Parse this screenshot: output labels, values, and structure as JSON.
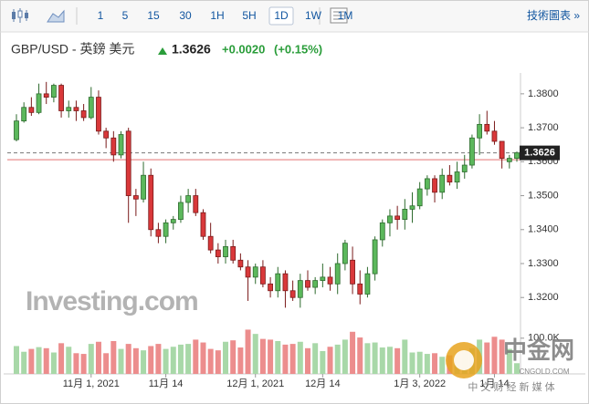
{
  "toolbar": {
    "intervals": [
      "1",
      "5",
      "15",
      "30",
      "1H",
      "5H",
      "1D",
      "1W",
      "1M"
    ],
    "active": "1D",
    "link": "技術圖表 »"
  },
  "chart_data": {
    "type": "candlestick",
    "title": "GBP/USD - 英鎊 美元",
    "last_price": 1.3626,
    "change": "+0.0020",
    "change_percent": "(+0.15%)",
    "prev_close": 1.3606,
    "watermark": "Investing.com",
    "categories": [
      null,
      null,
      null,
      null,
      null,
      null,
      null,
      null,
      null,
      null,
      "11月 1, 2021",
      null,
      null,
      null,
      null,
      null,
      null,
      null,
      null,
      null,
      "11月 14",
      null,
      null,
      null,
      null,
      null,
      null,
      null,
      null,
      null,
      null,
      null,
      "12月 1, 2021",
      null,
      null,
      null,
      null,
      null,
      null,
      null,
      null,
      "12月 14",
      null,
      null,
      null,
      null,
      null,
      null,
      null,
      null,
      null,
      null,
      null,
      null,
      "1月 3, 2022",
      null,
      null,
      null,
      null,
      null,
      null,
      null,
      null,
      null,
      "1月 14",
      null,
      null,
      null
    ],
    "open": [
      1.3665,
      1.372,
      1.376,
      1.3745,
      1.38,
      1.379,
      1.3825,
      1.375,
      1.376,
      1.375,
      1.373,
      1.379,
      1.369,
      1.367,
      1.362,
      1.369,
      1.35,
      1.349,
      1.356,
      1.34,
      1.338,
      1.342,
      1.343,
      1.348,
      1.35,
      1.345,
      1.338,
      1.334,
      1.332,
      1.335,
      1.331,
      1.329,
      1.326,
      1.329,
      1.324,
      1.322,
      1.327,
      1.322,
      1.32,
      1.325,
      1.323,
      1.325,
      1.326,
      1.324,
      1.33,
      1.331,
      1.324,
      1.321,
      1.327,
      1.337,
      1.342,
      1.344,
      1.343,
      1.346,
      1.347,
      1.352,
      1.355,
      1.351,
      1.356,
      1.354,
      1.357,
      1.359,
      1.367,
      1.371,
      1.369,
      1.366,
      1.36,
      1.361
    ],
    "high": [
      1.374,
      1.3775,
      1.379,
      1.383,
      1.3835,
      1.383,
      1.383,
      1.378,
      1.378,
      1.377,
      1.382,
      1.381,
      1.37,
      1.369,
      1.369,
      1.37,
      1.352,
      1.36,
      1.358,
      1.342,
      1.343,
      1.344,
      1.35,
      1.352,
      1.352,
      1.346,
      1.342,
      1.336,
      1.337,
      1.337,
      1.333,
      1.331,
      1.33,
      1.331,
      1.326,
      1.329,
      1.328,
      1.325,
      1.327,
      1.328,
      1.326,
      1.33,
      1.329,
      1.333,
      1.337,
      1.335,
      1.328,
      1.329,
      1.338,
      1.343,
      1.346,
      1.347,
      1.349,
      1.351,
      1.354,
      1.356,
      1.356,
      1.358,
      1.359,
      1.36,
      1.362,
      1.368,
      1.374,
      1.375,
      1.372,
      1.366,
      1.362,
      1.363
    ],
    "low": [
      1.366,
      1.3715,
      1.3735,
      1.374,
      1.377,
      1.3775,
      1.373,
      1.373,
      1.372,
      1.372,
      1.3725,
      1.368,
      1.364,
      1.36,
      1.361,
      1.342,
      1.344,
      1.348,
      1.338,
      1.336,
      1.336,
      1.34,
      1.342,
      1.345,
      1.344,
      1.337,
      1.333,
      1.33,
      1.33,
      1.33,
      1.328,
      1.319,
      1.324,
      1.323,
      1.32,
      1.32,
      1.317,
      1.319,
      1.317,
      1.322,
      1.321,
      1.323,
      1.322,
      1.321,
      1.328,
      1.321,
      1.318,
      1.32,
      1.325,
      1.335,
      1.338,
      1.34,
      1.34,
      1.342,
      1.346,
      1.35,
      1.348,
      1.349,
      1.353,
      1.352,
      1.355,
      1.358,
      1.362,
      1.368,
      1.365,
      1.358,
      1.358,
      1.36
    ],
    "close": [
      1.372,
      1.376,
      1.3745,
      1.38,
      1.379,
      1.3825,
      1.375,
      1.376,
      1.375,
      1.373,
      1.379,
      1.369,
      1.367,
      1.362,
      1.368,
      1.35,
      1.349,
      1.356,
      1.34,
      1.338,
      1.342,
      1.343,
      1.348,
      1.35,
      1.345,
      1.338,
      1.334,
      1.332,
      1.335,
      1.331,
      1.329,
      1.326,
      1.329,
      1.324,
      1.322,
      1.327,
      1.322,
      1.32,
      1.325,
      1.323,
      1.325,
      1.326,
      1.324,
      1.33,
      1.336,
      1.324,
      1.321,
      1.327,
      1.337,
      1.342,
      1.344,
      1.343,
      1.346,
      1.347,
      1.352,
      1.355,
      1.351,
      1.356,
      1.354,
      1.357,
      1.359,
      1.367,
      1.371,
      1.369,
      1.366,
      1.361,
      1.361,
      1.3626
    ],
    "volume": [
      78000,
      62000,
      70000,
      75000,
      72000,
      60000,
      86000,
      76000,
      58000,
      56000,
      84000,
      90000,
      58000,
      92000,
      70000,
      84000,
      72000,
      66000,
      78000,
      84000,
      70000,
      76000,
      82000,
      84000,
      96000,
      88000,
      70000,
      66000,
      90000,
      94000,
      74000,
      124000,
      112000,
      98000,
      96000,
      92000,
      82000,
      84000,
      90000,
      72000,
      86000,
      64000,
      76000,
      82000,
      96000,
      118000,
      102000,
      86000,
      88000,
      74000,
      76000,
      72000,
      96000,
      60000,
      62000,
      56000,
      58000,
      48000,
      52000,
      44000,
      66000,
      72000,
      96000,
      88000,
      104000,
      96000,
      70000,
      30000
    ],
    "ylim": [
      1.3163,
      1.3848
    ],
    "yticks": [
      {
        "value": 1.32,
        "label": "1.3200"
      },
      {
        "value": 1.33,
        "label": "1.3300"
      },
      {
        "value": 1.34,
        "label": "1.3400"
      },
      {
        "value": 1.35,
        "label": "1.3500"
      },
      {
        "value": 1.36,
        "label": "1.3600"
      },
      {
        "value": 1.37,
        "label": "1.3700"
      },
      {
        "value": 1.38,
        "label": "1.3800"
      }
    ],
    "volume_lim": [
      0,
      166000
    ],
    "volume_ticks": [
      {
        "value": 100000,
        "label": "100.0K"
      }
    ],
    "up_color": "#5cb85c",
    "down_color": "#d9383a",
    "volume_up_color": "#a8d8a8",
    "volume_down_color": "#ec8d8d"
  },
  "footer_logo": {
    "name": "中金网",
    "site": "CNGOLD.COM",
    "slogan": "中 文 财 经 新 媒 体"
  }
}
